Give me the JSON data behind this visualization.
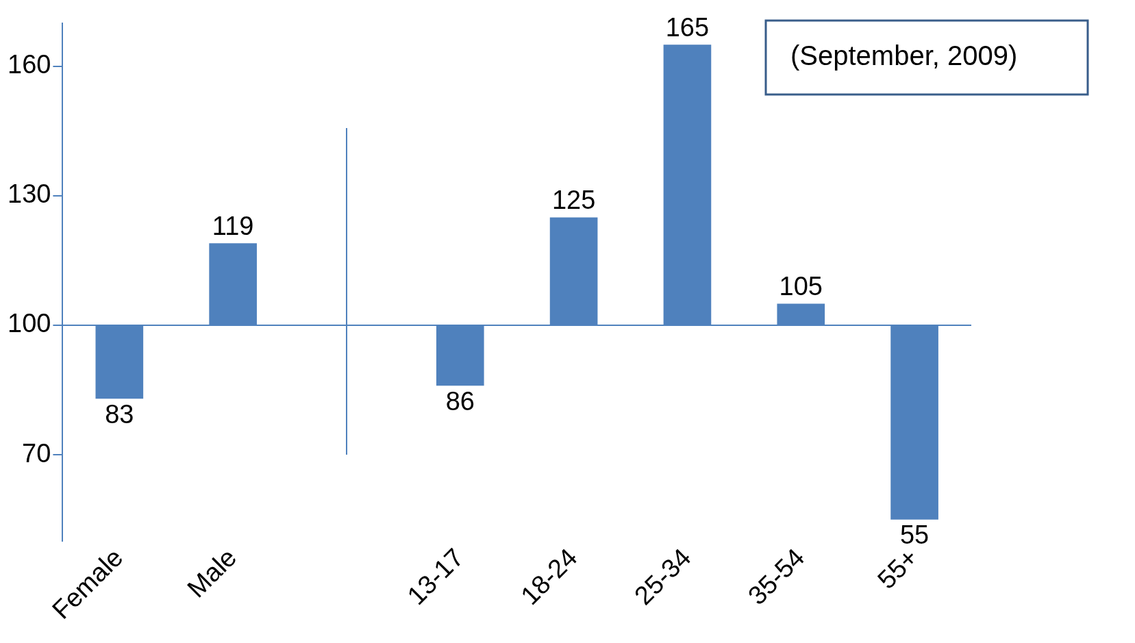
{
  "chart_data": {
    "type": "bar",
    "categories": [
      "Female",
      "Male",
      null,
      "13-17",
      "18-24",
      "25-34",
      "35-54",
      "55+"
    ],
    "values": [
      -17,
      19,
      null,
      -14,
      25,
      65,
      5,
      -45
    ],
    "base": [
      100,
      100,
      null,
      100,
      100,
      100,
      100,
      100
    ],
    "value_labels": [
      "83",
      "119",
      null,
      "86",
      "125",
      "165",
      "105",
      "55"
    ],
    "color": "#4f81bd",
    "ylim": [
      50,
      170
    ],
    "yticks": [
      70,
      100,
      130,
      160
    ],
    "ref_lines": [
      {
        "axis": "y",
        "value": 100,
        "color": "#4f81bd"
      }
    ],
    "annotations": [
      "(September, 2009)"
    ],
    "grid": false,
    "legend": false
  }
}
